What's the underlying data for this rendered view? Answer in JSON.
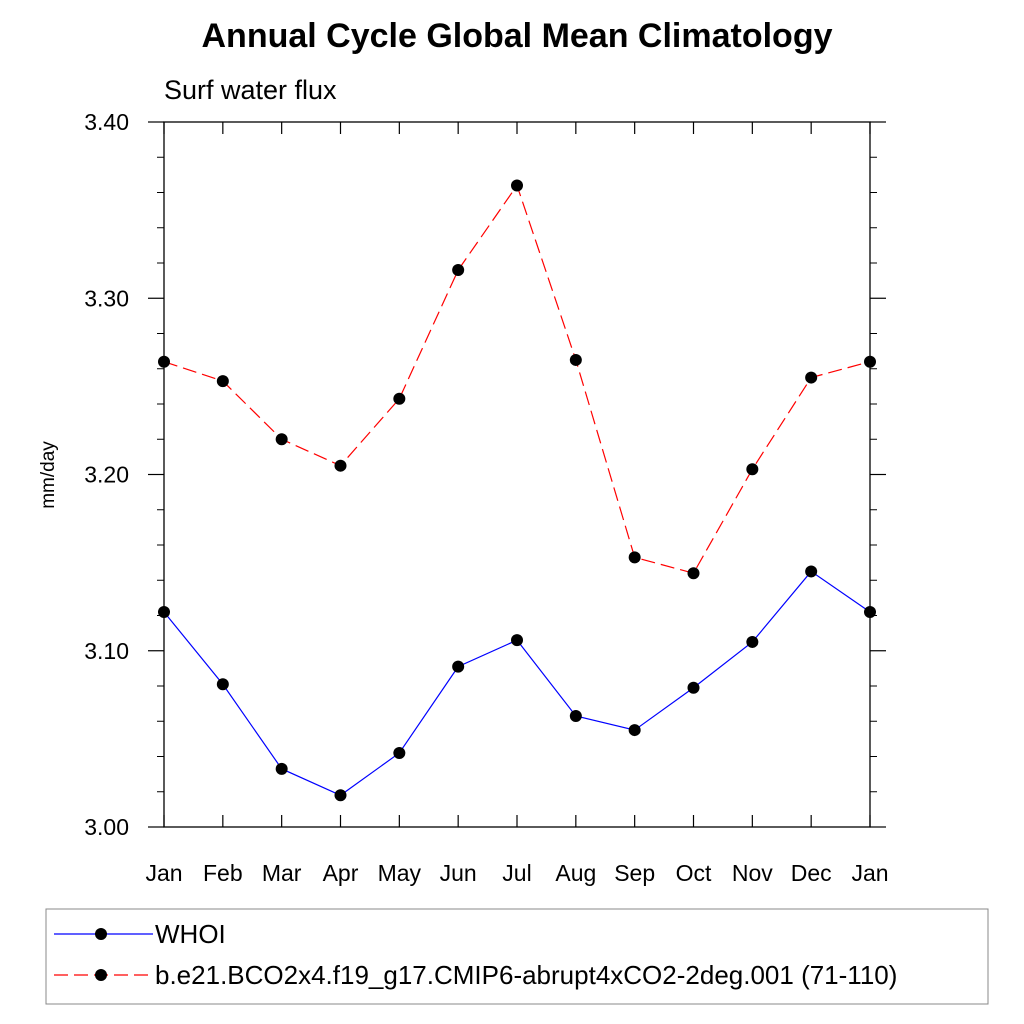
{
  "chart_data": {
    "type": "line",
    "title": "Annual Cycle Global Mean Climatology",
    "subtitle": "Surf water flux",
    "xlabel": "",
    "ylabel": "mm/day",
    "categories": [
      "Jan",
      "Feb",
      "Mar",
      "Apr",
      "May",
      "Jun",
      "Jul",
      "Aug",
      "Sep",
      "Oct",
      "Nov",
      "Dec",
      "Jan"
    ],
    "ylim": [
      3.0,
      3.4
    ],
    "yticks": [
      3.0,
      3.1,
      3.2,
      3.3,
      3.4
    ],
    "ytick_labels": [
      "3.00",
      "3.10",
      "3.20",
      "3.30",
      "3.40"
    ],
    "grid": false,
    "legend_position": "bottom",
    "series": [
      {
        "name": "WHOI",
        "color": "#0000ff",
        "dash": "solid",
        "marker": "circle",
        "values": [
          3.122,
          3.081,
          3.033,
          3.018,
          3.042,
          3.091,
          3.106,
          3.063,
          3.055,
          3.079,
          3.105,
          3.145,
          3.122
        ]
      },
      {
        "name": "b.e21.BCO2x4.f19_g17.CMIP6-abrupt4xCO2-2deg.001 (71-110)",
        "color": "#ff0000",
        "dash": "dashed",
        "marker": "circle",
        "values": [
          3.264,
          3.253,
          3.22,
          3.205,
          3.243,
          3.316,
          3.364,
          3.265,
          3.153,
          3.144,
          3.203,
          3.255,
          3.264
        ]
      }
    ]
  }
}
